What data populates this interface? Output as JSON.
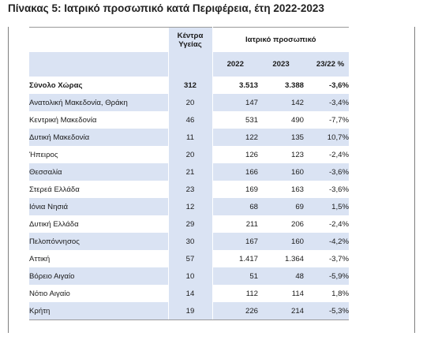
{
  "title": "Πίνακας 5: Ιατρικό προσωπικό κατά Περιφέρεια, έτη 2022-2023",
  "header": {
    "health_centers": "Κέντρα Υγείας",
    "medical_staff": "Ιατρικό προσωπικό",
    "year_2022": "2022",
    "year_2023": "2023",
    "change": "23/22 %"
  },
  "rows": [
    {
      "region": "Σύνολο Χώρας",
      "centers": "312",
      "y2022": "3.513",
      "y2023": "3.388",
      "change": "-3,6%"
    },
    {
      "region": "Ανατολική Μακεδονία, Θράκη",
      "centers": "20",
      "y2022": "147",
      "y2023": "142",
      "change": "-3,4%"
    },
    {
      "region": "Κεντρική Μακεδονία",
      "centers": "46",
      "y2022": "531",
      "y2023": "490",
      "change": "-7,7%"
    },
    {
      "region": "Δυτική Μακεδονία",
      "centers": "11",
      "y2022": "122",
      "y2023": "135",
      "change": "10,7%"
    },
    {
      "region": "Ήπειρος",
      "centers": "20",
      "y2022": "126",
      "y2023": "123",
      "change": "-2,4%"
    },
    {
      "region": "Θεσσαλία",
      "centers": "21",
      "y2022": "166",
      "y2023": "160",
      "change": "-3,6%"
    },
    {
      "region": "Στερεά Ελλάδα",
      "centers": "23",
      "y2022": "169",
      "y2023": "163",
      "change": "-3,6%"
    },
    {
      "region": "Ιόνια Νησιά",
      "centers": "12",
      "y2022": "68",
      "y2023": "69",
      "change": "1,5%"
    },
    {
      "region": "Δυτική Ελλάδα",
      "centers": "29",
      "y2022": "211",
      "y2023": "206",
      "change": "-2,4%"
    },
    {
      "region": "Πελοπόννησος",
      "centers": "30",
      "y2022": "167",
      "y2023": "160",
      "change": "-4,2%"
    },
    {
      "region": "Αττική",
      "centers": "57",
      "y2022": "1.417",
      "y2023": "1.364",
      "change": "-3,7%"
    },
    {
      "region": "Βόρειο Αιγαίο",
      "centers": "10",
      "y2022": "51",
      "y2023": "48",
      "change": "-5,9%"
    },
    {
      "region": "Νότιο Αιγαίο",
      "centers": "14",
      "y2022": "112",
      "y2023": "114",
      "change": "1,8%"
    },
    {
      "region": "Κρήτη",
      "centers": "19",
      "y2022": "226",
      "y2023": "214",
      "change": "-5,3%"
    }
  ]
}
